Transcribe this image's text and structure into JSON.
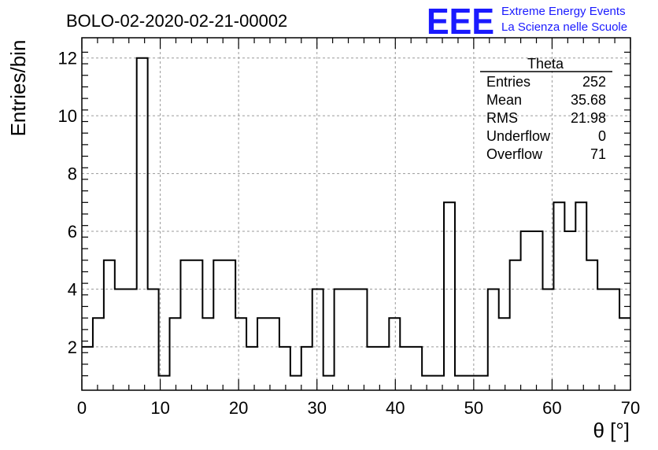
{
  "chart_data": {
    "type": "bar",
    "title": "BOLO-02-2020-02-21-00002",
    "xlabel": "θ [°]",
    "ylabel": "Entries/bin",
    "xlim": [
      0,
      70
    ],
    "ylim": [
      0.5,
      12.7
    ],
    "x_ticks": [
      0,
      10,
      20,
      30,
      40,
      50,
      60,
      70
    ],
    "y_ticks": [
      2,
      4,
      6,
      8,
      10,
      12
    ],
    "grid": true,
    "bin_width": 1.4,
    "values": [
      2,
      3,
      5,
      4,
      4,
      12,
      4,
      1,
      3,
      5,
      5,
      3,
      5,
      5,
      3,
      2,
      3,
      3,
      2,
      1,
      2,
      4,
      1,
      4,
      4,
      4,
      2,
      2,
      3,
      2,
      2,
      1,
      1,
      7,
      1,
      1,
      1,
      4,
      3,
      5,
      6,
      6,
      4,
      7,
      6,
      7,
      5,
      4,
      4,
      3
    ],
    "stats_box": {
      "title": "Theta",
      "rows": [
        {
          "label": "Entries",
          "value": "252"
        },
        {
          "label": "Mean",
          "value": "35.68"
        },
        {
          "label": "RMS",
          "value": "21.98"
        },
        {
          "label": "Underflow",
          "value": "0"
        },
        {
          "label": "Overflow",
          "value": "71"
        }
      ]
    }
  },
  "branding": {
    "logo_text": "EEE",
    "line1": "Extreme Energy Events",
    "line2": "La Scienza nelle Scuole",
    "color": "#1a1aff"
  }
}
